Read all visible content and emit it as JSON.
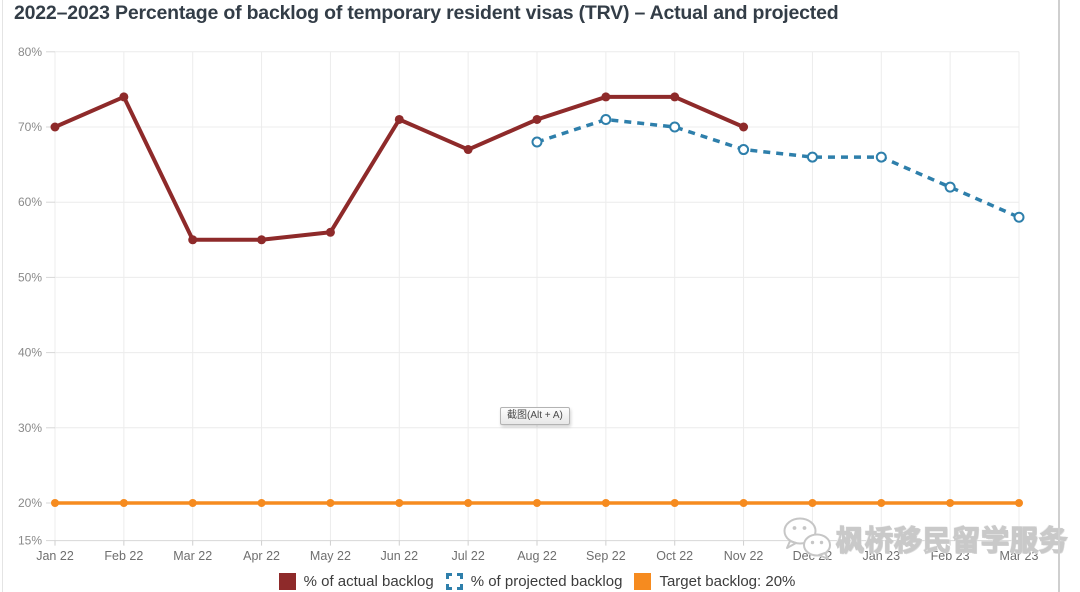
{
  "tooltip": {
    "label": "截图(Alt + A)"
  },
  "watermark": {
    "text": "枫桥移民留学服务",
    "icon": "wechat-logo"
  },
  "chart_data": {
    "type": "line",
    "title": "2022–2023 Percentage of backlog of temporary resident visas (TRV) – Actual and projected",
    "categories": [
      "Jan 22",
      "Feb 22",
      "Mar 22",
      "Apr 22",
      "May 22",
      "Jun 22",
      "Jul 22",
      "Aug 22",
      "Sep 22",
      "Oct 22",
      "Nov 22",
      "Dec 22",
      "Jan 23",
      "Feb 23",
      "Mar 23"
    ],
    "yticks": [
      15,
      20,
      30,
      40,
      50,
      60,
      70,
      80
    ],
    "ytick_labels": [
      "15%",
      "20%",
      "30%",
      "40%",
      "50%",
      "60%",
      "70%",
      "80%"
    ],
    "ylim": [
      15,
      80
    ],
    "grid": true,
    "legend_position": "bottom",
    "series": [
      {
        "name": "% of actual backlog",
        "color": "#8e2a2a",
        "line_style": "solid",
        "marker": "filled-circle",
        "values": [
          70,
          74,
          55,
          55,
          56,
          71,
          67,
          71,
          74,
          74,
          70,
          null,
          null,
          null,
          null
        ]
      },
      {
        "name": "% of projected backlog",
        "color": "#2e7fab",
        "line_style": "dashed",
        "marker": "open-circle",
        "values": [
          null,
          null,
          null,
          null,
          null,
          null,
          null,
          68,
          71,
          70,
          67,
          66,
          66,
          62,
          58
        ]
      },
      {
        "name": "Target backlog: 20%",
        "color": "#f68b1f",
        "line_style": "solid",
        "marker": "filled-circle",
        "values": [
          20,
          20,
          20,
          20,
          20,
          20,
          20,
          20,
          20,
          20,
          20,
          20,
          20,
          20,
          20
        ]
      }
    ]
  }
}
